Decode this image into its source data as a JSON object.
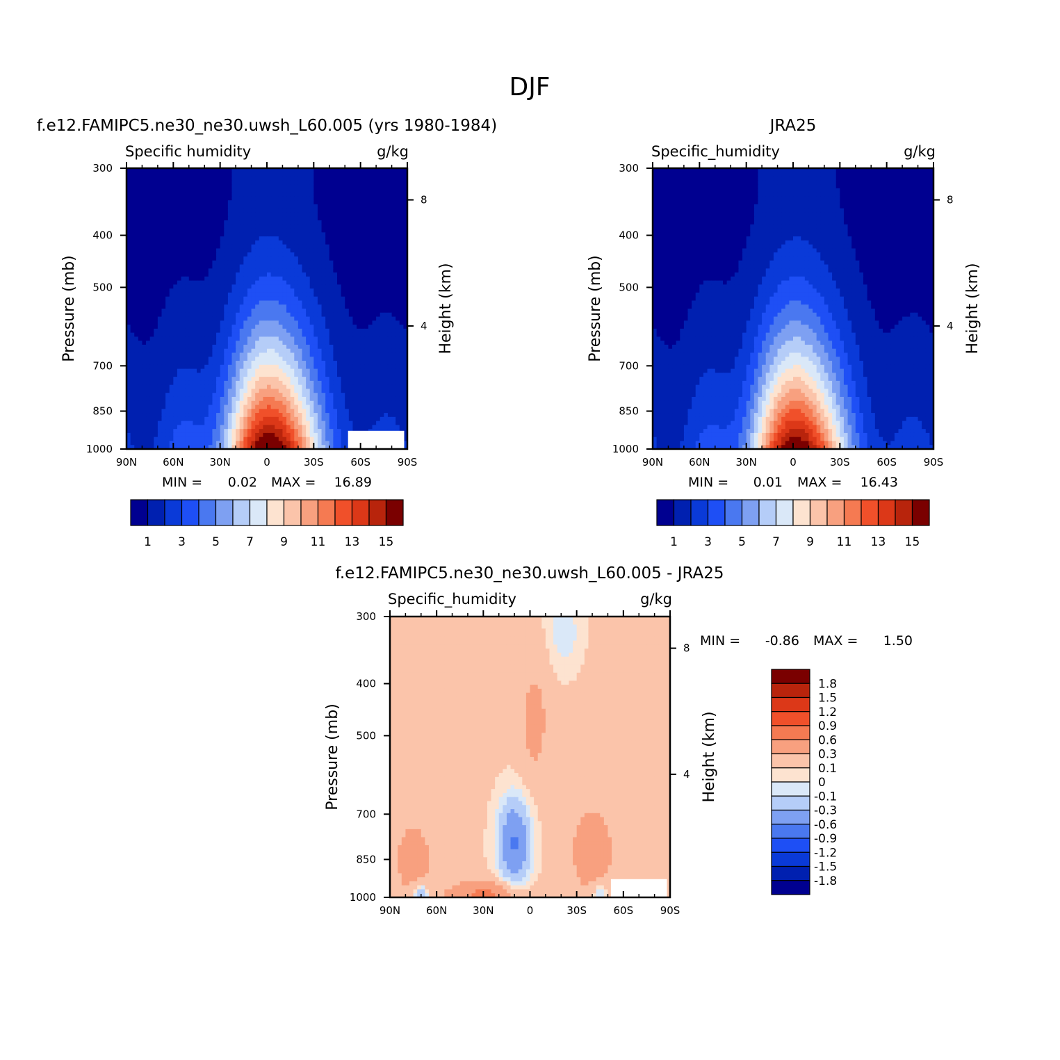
{
  "main_title": "DJF",
  "chart_data": [
    {
      "type": "heatmap",
      "id": "model",
      "case_title": "f.e12.FAMIPC5.ne30_ne30.uwsh_L60.005 (yrs 1980-1984)",
      "left_label": "Specific humidity",
      "right_label": "g/kg",
      "ylabel": "Pressure (mb)",
      "ylabel_right": "Height (km)",
      "x_ticks": [
        "90N",
        "60N",
        "30N",
        "0",
        "30S",
        "60S",
        "90S"
      ],
      "y_ticks": [
        "300",
        "400",
        "500",
        "700",
        "850",
        "1000"
      ],
      "y_tick_values": [
        300,
        400,
        500,
        700,
        850,
        1000
      ],
      "height_ticks": [
        "8",
        "4"
      ],
      "height_tick_values": [
        8,
        4
      ],
      "xlim": [
        90,
        -90
      ],
      "ylim": [
        1000,
        300
      ],
      "min_label": "MIN =",
      "min_value": "0.02",
      "max_label": "MAX =",
      "max_value": "16.89",
      "min": 0.02,
      "max": 16.89,
      "field": "moist_model",
      "palette": "seq",
      "colorbar_labels": [
        "1",
        "3",
        "5",
        "7",
        "9",
        "11",
        "13",
        "15"
      ],
      "colorbar_orientation": "horizontal"
    },
    {
      "type": "heatmap",
      "id": "obs",
      "case_title": "JRA25",
      "left_label": "Specific_humidity",
      "right_label": "g/kg",
      "ylabel": "Pressure (mb)",
      "ylabel_right": "Height (km)",
      "x_ticks": [
        "90N",
        "60N",
        "30N",
        "0",
        "30S",
        "60S",
        "90S"
      ],
      "y_ticks": [
        "300",
        "400",
        "500",
        "700",
        "850",
        "1000"
      ],
      "y_tick_values": [
        300,
        400,
        500,
        700,
        850,
        1000
      ],
      "height_ticks": [
        "8",
        "4"
      ],
      "height_tick_values": [
        8,
        4
      ],
      "xlim": [
        90,
        -90
      ],
      "ylim": [
        1000,
        300
      ],
      "min_label": "MIN =",
      "min_value": "0.01",
      "max_label": "MAX =",
      "max_value": "16.43",
      "min": 0.01,
      "max": 16.43,
      "field": "moist_obs",
      "palette": "seq",
      "colorbar_labels": [
        "1",
        "3",
        "5",
        "7",
        "9",
        "11",
        "13",
        "15"
      ],
      "colorbar_orientation": "horizontal"
    },
    {
      "type": "heatmap",
      "id": "diff",
      "case_title": "f.e12.FAMIPC5.ne30_ne30.uwsh_L60.005 - JRA25",
      "left_label": "Specific_humidity",
      "right_label": "g/kg",
      "ylabel": "Pressure (mb)",
      "ylabel_right": "Height (km)",
      "x_ticks": [
        "90N",
        "60N",
        "30N",
        "0",
        "30S",
        "60S",
        "90S"
      ],
      "y_ticks": [
        "300",
        "400",
        "500",
        "700",
        "850",
        "1000"
      ],
      "y_tick_values": [
        300,
        400,
        500,
        700,
        850,
        1000
      ],
      "height_ticks": [
        "8",
        "4"
      ],
      "height_tick_values": [
        8,
        4
      ],
      "xlim": [
        90,
        -90
      ],
      "ylim": [
        1000,
        300
      ],
      "min_label": "MIN =",
      "min_value": "-0.86",
      "max_label": "MAX =",
      "max_value": "1.50",
      "min": -0.86,
      "max": 1.5,
      "field": "diff",
      "palette": "div",
      "colorbar_labels": [
        "1.8",
        "1.5",
        "1.2",
        "0.9",
        "0.6",
        "0.3",
        "0.1",
        "0",
        "-0.1",
        "-0.3",
        "-0.6",
        "-0.9",
        "-1.2",
        "-1.5",
        "-1.8"
      ],
      "colorbar_orientation": "vertical"
    }
  ],
  "colors": {
    "seq_palette": [
      "#000090",
      "#0020b0",
      "#0a3ad8",
      "#1e4ff5",
      "#4a78f0",
      "#7ea0f2",
      "#b5cdf8",
      "#dae8f8",
      "#fde3d0",
      "#fbc4aa",
      "#f8a07f",
      "#f57a52",
      "#f0502a",
      "#dc3818",
      "#b8240c",
      "#7a0000"
    ],
    "seq_bounds": [
      0.5,
      1.5,
      2.5,
      3.5,
      4.5,
      5.5,
      6.5,
      7.5,
      8.5,
      9.5,
      10.5,
      11.5,
      12.5,
      13.5,
      14.5
    ],
    "div_palette": [
      "#000090",
      "#0020b0",
      "#0a3ad8",
      "#1e4ff5",
      "#4a78f0",
      "#7ea0f2",
      "#b5cdf8",
      "#dae8f8",
      "#fde3d0",
      "#fbc4aa",
      "#f8a07f",
      "#f57a52",
      "#f0502a",
      "#dc3818",
      "#b8240c",
      "#7a0000"
    ],
    "div_bounds": [
      -1.8,
      -1.5,
      -1.2,
      -0.9,
      -0.6,
      -0.3,
      -0.1,
      0,
      0.1,
      0.3,
      0.6,
      0.9,
      1.2,
      1.5,
      1.8
    ],
    "missing": "#ffffff"
  }
}
